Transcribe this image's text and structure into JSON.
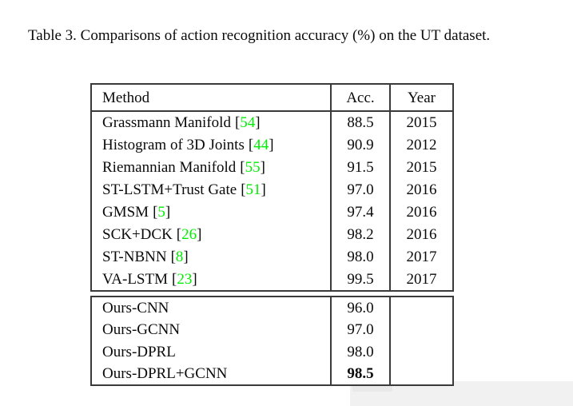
{
  "colors": {
    "citation_green": "#00ee00",
    "border_dark": "#3a3a3a",
    "artifact_grey": "#f1f1f1",
    "text": "#0a0a0a"
  },
  "caption": {
    "text": "Table 3. Comparisons of action recognition accuracy (%) on the UT dataset."
  },
  "table": {
    "headers": {
      "method": "Method",
      "acc": "Acc.",
      "year": "Year"
    },
    "brackets": {
      "open": "[",
      "close": "]"
    },
    "rows": [
      {
        "method": "Grassmann Manifold",
        "cite": "54",
        "acc": "88.5",
        "year": "2015"
      },
      {
        "method": "Histogram of 3D Joints",
        "cite": "44",
        "acc": "90.9",
        "year": "2012"
      },
      {
        "method": "Riemannian Manifold",
        "cite": "55",
        "acc": "91.5",
        "year": "2015"
      },
      {
        "method": "ST-LSTM+Trust Gate",
        "cite": "51",
        "acc": "97.0",
        "year": "2016"
      },
      {
        "method": "GMSM",
        "cite": "5",
        "acc": "97.4",
        "year": "2016"
      },
      {
        "method": "SCK+DCK",
        "cite": "26",
        "acc": "98.2",
        "year": "2016"
      },
      {
        "method": "ST-NBNN",
        "cite": "8",
        "acc": "98.0",
        "year": "2017"
      },
      {
        "method": "VA-LSTM",
        "cite": "23",
        "acc": "99.5",
        "year": "2017"
      }
    ],
    "ours_rows": [
      {
        "method": "Ours-CNN",
        "acc": "96.0",
        "year": ""
      },
      {
        "method": "Ours-GCNN",
        "acc": "97.0",
        "year": ""
      },
      {
        "method": "Ours-DPRL",
        "acc": "98.0",
        "year": ""
      },
      {
        "method": "Ours-DPRL+GCNN",
        "acc": "98.5",
        "year": ""
      }
    ]
  }
}
